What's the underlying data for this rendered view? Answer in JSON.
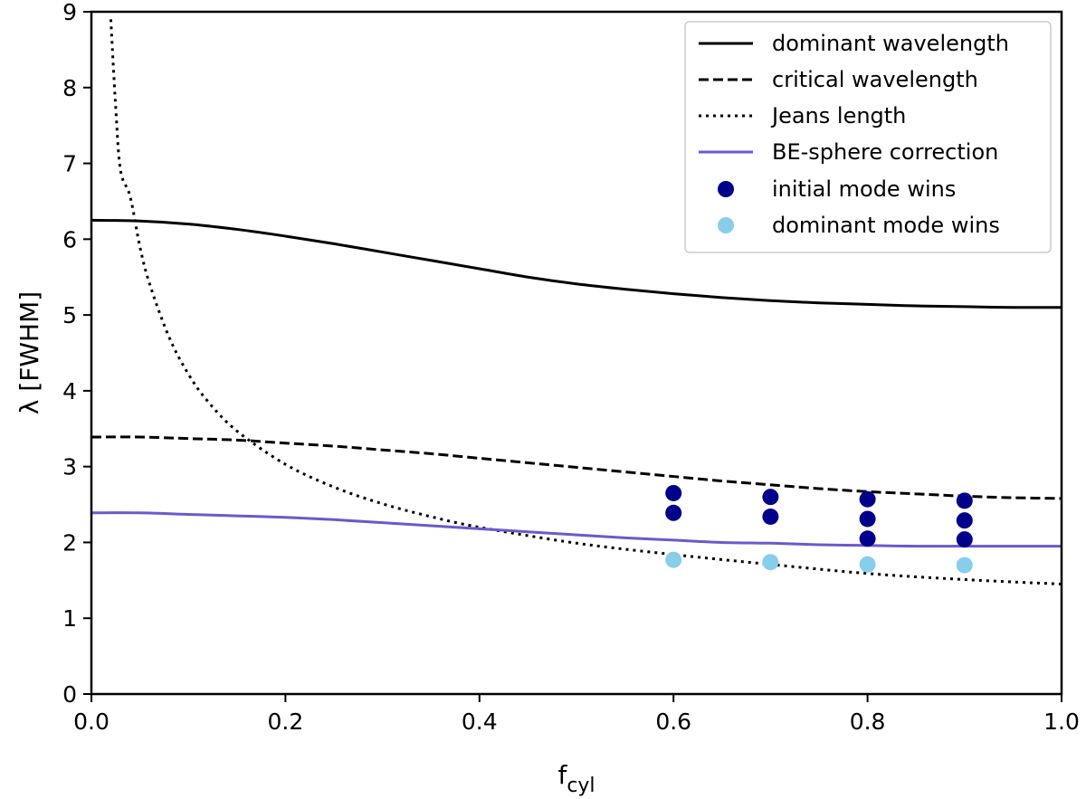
{
  "chart_data": {
    "type": "line",
    "title": "",
    "xlabel_main": "f",
    "xlabel_sub": "cyl",
    "ylabel": "λ [FWHM]",
    "xlim": [
      0.0,
      1.0
    ],
    "ylim": [
      0,
      9
    ],
    "xticks": [
      "0.0",
      "0.2",
      "0.4",
      "0.6",
      "0.8",
      "1.0"
    ],
    "yticks": [
      "0",
      "1",
      "2",
      "3",
      "4",
      "5",
      "6",
      "7",
      "8",
      "9"
    ],
    "grid": false,
    "legend_position": "top-right",
    "colors": {
      "black": "#000000",
      "be_sphere": "#6a5acd",
      "initial": "#00008b",
      "dominant": "#87ceeb"
    },
    "series": [
      {
        "name": "dominant wavelength",
        "style": "solid",
        "x": [
          0.0,
          0.05,
          0.1,
          0.15,
          0.2,
          0.25,
          0.3,
          0.35,
          0.4,
          0.45,
          0.5,
          0.55,
          0.6,
          0.65,
          0.7,
          0.75,
          0.8,
          0.85,
          0.9,
          0.95,
          1.0
        ],
        "y": [
          6.25,
          6.24,
          6.2,
          6.13,
          6.04,
          5.94,
          5.83,
          5.72,
          5.61,
          5.5,
          5.41,
          5.34,
          5.28,
          5.23,
          5.19,
          5.16,
          5.14,
          5.12,
          5.11,
          5.1,
          5.1
        ]
      },
      {
        "name": "critical wavelength",
        "style": "dashed",
        "x": [
          0.0,
          0.05,
          0.1,
          0.15,
          0.2,
          0.25,
          0.3,
          0.35,
          0.4,
          0.45,
          0.5,
          0.55,
          0.6,
          0.65,
          0.7,
          0.75,
          0.8,
          0.85,
          0.9,
          0.95,
          1.0
        ],
        "y": [
          3.39,
          3.39,
          3.37,
          3.35,
          3.31,
          3.27,
          3.22,
          3.17,
          3.11,
          3.05,
          2.99,
          2.93,
          2.87,
          2.81,
          2.76,
          2.71,
          2.67,
          2.64,
          2.61,
          2.59,
          2.58
        ]
      },
      {
        "name": "Jeans length",
        "style": "dotted",
        "x": [
          0.02,
          0.025,
          0.03,
          0.04,
          0.05,
          0.06,
          0.08,
          0.1,
          0.12,
          0.15,
          0.2,
          0.25,
          0.3,
          0.35,
          0.4,
          0.5,
          0.6,
          0.7,
          0.8,
          0.9,
          1.0
        ],
        "y": [
          8.9,
          7.75,
          6.91,
          6.56,
          5.9,
          5.41,
          4.71,
          4.22,
          3.86,
          3.47,
          3.03,
          2.73,
          2.51,
          2.34,
          2.2,
          1.99,
          1.84,
          1.71,
          1.59,
          1.51,
          1.45
        ]
      },
      {
        "name": "BE-sphere correction",
        "style": "solid-purple",
        "x": [
          0.0,
          0.05,
          0.1,
          0.15,
          0.2,
          0.25,
          0.3,
          0.35,
          0.4,
          0.45,
          0.5,
          0.55,
          0.6,
          0.65,
          0.7,
          0.75,
          0.8,
          0.85,
          0.9,
          0.95,
          1.0
        ],
        "y": [
          2.39,
          2.39,
          2.37,
          2.35,
          2.33,
          2.3,
          2.26,
          2.22,
          2.18,
          2.14,
          2.1,
          2.06,
          2.03,
          2.0,
          1.99,
          1.97,
          1.96,
          1.95,
          1.95,
          1.95,
          1.95
        ]
      }
    ],
    "scatter": [
      {
        "name": "initial mode wins",
        "x": [
          0.6,
          0.6,
          0.7,
          0.7,
          0.8,
          0.8,
          0.8,
          0.9,
          0.9,
          0.9
        ],
        "y": [
          2.65,
          2.39,
          2.6,
          2.34,
          2.57,
          2.31,
          2.05,
          2.55,
          2.29,
          2.04
        ]
      },
      {
        "name": "dominant mode wins",
        "x": [
          0.6,
          0.7,
          0.8,
          0.9
        ],
        "y": [
          1.77,
          1.74,
          1.71,
          1.7
        ]
      }
    ]
  }
}
